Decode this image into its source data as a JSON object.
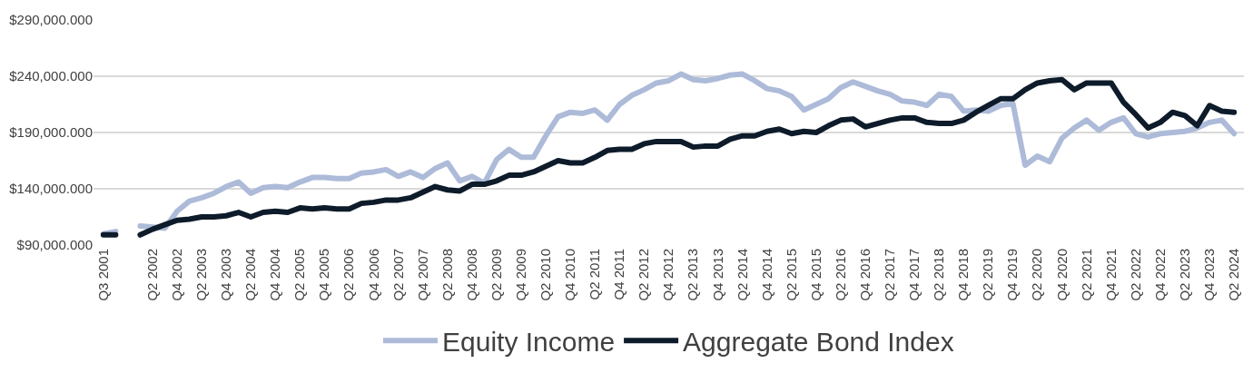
{
  "chart_data": {
    "type": "line",
    "categories": [
      "Q3 2001",
      null,
      null,
      null,
      "Q2 2002",
      null,
      "Q4 2002",
      null,
      "Q2 2003",
      null,
      "Q4 2003",
      null,
      "Q2 2004",
      null,
      "Q4 2004",
      null,
      "Q2 2005",
      null,
      "Q4 2005",
      null,
      "Q2 2006",
      null,
      "Q4 2006",
      null,
      "Q2 2007",
      null,
      "Q4 2007",
      null,
      "Q2 2008",
      null,
      "Q4 2008",
      null,
      "Q2 2009",
      null,
      "Q4 2009",
      null,
      "Q2 2010",
      null,
      "Q4 2010",
      null,
      "Q2 2011",
      null,
      "Q4 2011",
      null,
      "Q2 2012",
      null,
      "Q4 2012",
      null,
      "Q2 2013",
      null,
      "Q4 2013",
      null,
      "Q2 2014",
      null,
      "Q4 2014",
      null,
      "Q2 2015",
      null,
      "Q4 2015",
      null,
      "Q2 2016",
      null,
      "Q4 2016",
      null,
      "Q2 2017",
      null,
      "Q4 2017",
      null,
      "Q2 2018",
      null,
      "Q4 2018",
      null,
      "Q2 2019",
      null,
      "Q4 2019",
      null,
      "Q2 2020",
      null,
      "Q4 2020",
      null,
      "Q2 2021",
      null,
      "Q4 2021",
      null,
      "Q2 2022",
      null,
      "Q4 2022",
      null,
      "Q2 2023",
      null,
      "Q4 2023",
      null,
      "Q2 2024"
    ],
    "series": [
      {
        "name": "Equity Income",
        "color": "#adbbd9",
        "values": [
          100000,
          102000,
          null,
          107000,
          106000,
          105000,
          120000,
          129000,
          132000,
          136000,
          142000,
          146000,
          136000,
          141000,
          142000,
          141000,
          146000,
          150000,
          150000,
          149000,
          149000,
          154000,
          155000,
          157000,
          151000,
          155000,
          150000,
          158000,
          163000,
          147000,
          151000,
          145000,
          166000,
          175000,
          168000,
          168000,
          187000,
          204000,
          208000,
          207000,
          210000,
          201000,
          215000,
          223000,
          228000,
          234000,
          236000,
          242000,
          237000,
          236000,
          238000,
          241000,
          242000,
          236000,
          229000,
          227000,
          222000,
          210000,
          215000,
          220000,
          230000,
          235000,
          231000,
          227000,
          224000,
          218000,
          217000,
          214000,
          224000,
          222000,
          209000,
          210000,
          209000,
          214000,
          216000,
          161000,
          169000,
          164000,
          185000,
          194000,
          201000,
          192000,
          199000,
          203000,
          189000,
          186000,
          189000,
          190000,
          191000,
          194000,
          199000,
          201000,
          189000
        ]
      },
      {
        "name": "Aggregate Bond Index",
        "color": "#0d1b2a",
        "values": [
          99000,
          99000,
          null,
          99000,
          104000,
          108000,
          112000,
          113000,
          115000,
          115000,
          116000,
          119000,
          115000,
          119000,
          120000,
          119000,
          123000,
          122000,
          123000,
          122000,
          122000,
          127000,
          128000,
          130000,
          130000,
          132000,
          137000,
          142000,
          139000,
          138000,
          144000,
          144000,
          147000,
          152000,
          152000,
          155000,
          160000,
          165000,
          163000,
          163000,
          168000,
          174000,
          175000,
          175000,
          180000,
          182000,
          182000,
          182000,
          177000,
          178000,
          178000,
          184000,
          187000,
          187000,
          191000,
          193000,
          189000,
          191000,
          190000,
          196000,
          201000,
          202000,
          195000,
          198000,
          201000,
          203000,
          203000,
          199000,
          198000,
          198000,
          201000,
          208000,
          214000,
          220000,
          220000,
          228000,
          234000,
          236000,
          237000,
          228000,
          234000,
          234000,
          234000,
          217000,
          206000,
          194000,
          199000,
          208000,
          205000,
          196000,
          214000,
          209000,
          208000
        ]
      }
    ],
    "ylim": [
      90000,
      290000
    ],
    "yticks": [
      {
        "value": 90000,
        "label": "$90,000.000"
      },
      {
        "value": 140000,
        "label": "$140,000.000"
      },
      {
        "value": 190000,
        "label": "$190,000.000"
      },
      {
        "value": 240000,
        "label": "$240,000.000"
      },
      {
        "value": 290000,
        "label": "$290,000.000"
      }
    ],
    "grid": "y",
    "legend": "bottom",
    "marker": "none",
    "line_style": "solid"
  }
}
